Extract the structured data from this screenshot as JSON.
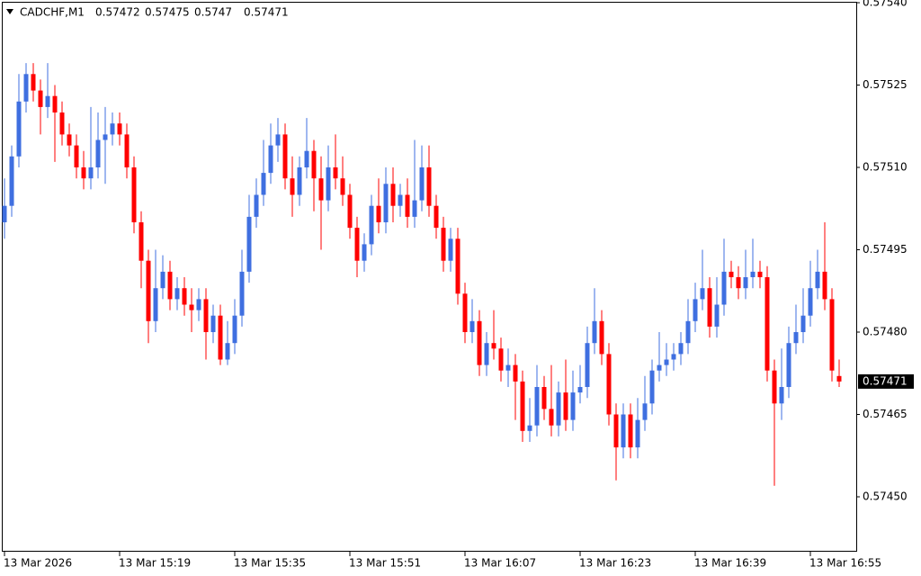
{
  "chart_data": {
    "type": "candlestick",
    "symbol": "CADCHF,M1",
    "ohlc": [
      0.57472,
      0.57475,
      0.5747,
      0.57471
    ],
    "last_price": 0.57471,
    "up_color": "#3f6fe0",
    "down_color": "#ff0000",
    "ylim": [
      0.5744,
      0.5754
    ],
    "yticks": [
      {
        "value": 0.5745,
        "label": "0.57450"
      },
      0.57465,
      {
        "value": 0.5748,
        "label": "0.57480"
      },
      0.57495,
      {
        "value": 0.5751,
        "label": "0.57510"
      },
      0.57525,
      {
        "value": 0.5754,
        "label": "0.57540"
      }
    ],
    "categories": [
      "13 Mar 2026",
      null,
      null,
      null,
      null,
      null,
      null,
      null,
      null,
      null,
      null,
      null,
      null,
      null,
      null,
      null,
      "13 Mar 15:19",
      null,
      null,
      null,
      null,
      null,
      null,
      null,
      null,
      null,
      null,
      null,
      null,
      null,
      null,
      null,
      "13 Mar 15:35",
      null,
      null,
      null,
      null,
      null,
      null,
      null,
      null,
      null,
      null,
      null,
      null,
      null,
      null,
      null,
      "13 Mar 15:51",
      null,
      null,
      null,
      null,
      null,
      null,
      null,
      null,
      null,
      null,
      null,
      null,
      null,
      null,
      null,
      "13 Mar 16:07",
      null,
      null,
      null,
      null,
      null,
      null,
      null,
      null,
      null,
      null,
      null,
      null,
      null,
      null,
      null,
      "13 Mar 16:23",
      null,
      null,
      null,
      null,
      null,
      null,
      null,
      null,
      null,
      null,
      null,
      null,
      null,
      null,
      null,
      "13 Mar 16:39",
      null,
      null,
      null,
      null,
      null,
      null,
      null,
      null,
      null,
      null,
      null,
      null,
      null,
      null,
      null,
      "13 Mar 16:55",
      null,
      null,
      null,
      null
    ],
    "open": [
      0.575,
      0.57503,
      0.57512,
      0.57522,
      0.57527,
      0.57524,
      0.57521,
      0.57523,
      0.5752,
      0.57516,
      0.57514,
      0.5751,
      0.57508,
      0.5751,
      0.57515,
      0.57516,
      0.57518,
      0.57516,
      0.5751,
      0.575,
      0.57493,
      0.57482,
      0.57488,
      0.57491,
      0.57486,
      0.57488,
      0.57485,
      0.57484,
      0.57486,
      0.5748,
      0.57483,
      0.57475,
      0.57478,
      0.57483,
      0.57491,
      0.57501,
      0.57505,
      0.57509,
      0.57514,
      0.57516,
      0.57508,
      0.57505,
      0.5751,
      0.57513,
      0.57508,
      0.57504,
      0.5751,
      0.57508,
      0.57505,
      0.57499,
      0.57493,
      0.57496,
      0.57503,
      0.575,
      0.57507,
      0.57503,
      0.57505,
      0.57501,
      0.57504,
      0.5751,
      0.57503,
      0.57499,
      0.57493,
      0.57497,
      0.57487,
      0.5748,
      0.57482,
      0.57474,
      0.57478,
      0.57477,
      0.57473,
      0.57474,
      0.57471,
      0.57462,
      0.57463,
      0.5747,
      0.57466,
      0.57463,
      0.57469,
      0.57464,
      0.57469,
      0.5747,
      0.57478,
      0.57482,
      0.57476,
      0.57465,
      0.57459,
      0.57465,
      0.57459,
      0.57464,
      0.57467,
      0.57473,
      0.57474,
      0.57475,
      0.57476,
      0.57478,
      0.57482,
      0.57486,
      0.57488,
      0.57481,
      0.57485,
      0.57491,
      0.5749,
      0.57488,
      0.5749,
      0.57491,
      0.5749,
      0.57473,
      0.57467,
      0.5747,
      0.57478,
      0.5748,
      0.57483,
      0.57488,
      0.57491,
      0.57486,
      0.57472
    ],
    "high": [
      0.57508,
      0.57514,
      0.57527,
      0.57529,
      0.57529,
      0.57526,
      0.57529,
      0.57525,
      0.57522,
      0.57518,
      0.57516,
      0.57513,
      0.57521,
      0.5752,
      0.57521,
      0.5752,
      0.5752,
      0.57518,
      0.57512,
      0.57502,
      0.57495,
      0.57495,
      0.57494,
      0.57493,
      0.5749,
      0.5749,
      0.57488,
      0.57488,
      0.57488,
      0.57485,
      0.57485,
      0.57482,
      0.57486,
      0.57495,
      0.57505,
      0.57508,
      0.57515,
      0.57518,
      0.57519,
      0.57518,
      0.57512,
      0.57512,
      0.57519,
      0.57515,
      0.57512,
      0.57514,
      0.57516,
      0.57512,
      0.57507,
      0.57501,
      0.57498,
      0.57505,
      0.57508,
      0.5751,
      0.5751,
      0.57507,
      0.57508,
      0.57515,
      0.57514,
      0.57514,
      0.57505,
      0.57501,
      0.57499,
      0.57499,
      0.57489,
      0.57486,
      0.57484,
      0.5748,
      0.57484,
      0.57479,
      0.57477,
      0.57476,
      0.57473,
      0.57468,
      0.57474,
      0.57472,
      0.57474,
      0.57471,
      0.57475,
      0.57473,
      0.57474,
      0.57481,
      0.57488,
      0.57484,
      0.57478,
      0.57467,
      0.57467,
      0.57467,
      0.57468,
      0.57472,
      0.57475,
      0.5748,
      0.57478,
      0.57478,
      0.5748,
      0.57486,
      0.57489,
      0.57495,
      0.5749,
      0.5749,
      0.57497,
      0.57493,
      0.57492,
      0.57495,
      0.57497,
      0.57493,
      0.57492,
      0.57475,
      0.57477,
      0.57481,
      0.57485,
      0.57488,
      0.57493,
      0.57495,
      0.575,
      0.57488,
      0.57475
    ],
    "low": [
      0.57497,
      0.57501,
      0.5751,
      0.5752,
      0.57522,
      0.57516,
      0.57519,
      0.57511,
      0.57514,
      0.57512,
      0.57508,
      0.57506,
      0.57506,
      0.57508,
      0.57507,
      0.57514,
      0.57514,
      0.57508,
      0.57498,
      0.57488,
      0.57478,
      0.5748,
      0.57486,
      0.57484,
      0.57484,
      0.57483,
      0.5748,
      0.57482,
      0.57475,
      0.57478,
      0.57474,
      0.57474,
      0.57476,
      0.57481,
      0.57489,
      0.57499,
      0.57503,
      0.57507,
      0.57511,
      0.57506,
      0.57501,
      0.57503,
      0.57508,
      0.57502,
      0.57495,
      0.57502,
      0.57506,
      0.57503,
      0.57497,
      0.5749,
      0.57491,
      0.57494,
      0.57498,
      0.57498,
      0.575,
      0.57501,
      0.57499,
      0.57499,
      0.57502,
      0.57501,
      0.57497,
      0.57491,
      0.57491,
      0.57485,
      0.57478,
      0.57478,
      0.57472,
      0.57472,
      0.57475,
      0.57471,
      0.5747,
      0.57464,
      0.5746,
      0.5746,
      0.57461,
      0.57464,
      0.57461,
      0.57461,
      0.57462,
      0.57462,
      0.57467,
      0.57468,
      0.57476,
      0.57474,
      0.57463,
      0.57453,
      0.57457,
      0.57457,
      0.57457,
      0.57462,
      0.57465,
      0.57471,
      0.57472,
      0.57473,
      0.57474,
      0.57476,
      0.5748,
      0.57484,
      0.57479,
      0.57479,
      0.57483,
      0.57488,
      0.57486,
      0.57486,
      0.57488,
      0.57488,
      0.57471,
      0.57452,
      0.57464,
      0.57468,
      0.57476,
      0.57478,
      0.57481,
      0.57486,
      0.57484,
      0.57471,
      0.5747
    ],
    "close": [
      0.57503,
      0.57512,
      0.57522,
      0.57527,
      0.57524,
      0.57521,
      0.57523,
      0.5752,
      0.57516,
      0.57514,
      0.5751,
      0.57508,
      0.5751,
      0.57515,
      0.57516,
      0.57518,
      0.57516,
      0.5751,
      0.575,
      0.57493,
      0.57482,
      0.57488,
      0.57491,
      0.57486,
      0.57488,
      0.57485,
      0.57484,
      0.57486,
      0.5748,
      0.57483,
      0.57475,
      0.57478,
      0.57483,
      0.57491,
      0.57501,
      0.57505,
      0.57509,
      0.57514,
      0.57516,
      0.57508,
      0.57505,
      0.5751,
      0.57513,
      0.57508,
      0.57504,
      0.5751,
      0.57508,
      0.57505,
      0.57499,
      0.57493,
      0.57496,
      0.57503,
      0.575,
      0.57507,
      0.57503,
      0.57505,
      0.57501,
      0.57504,
      0.5751,
      0.57503,
      0.57499,
      0.57493,
      0.57497,
      0.57487,
      0.5748,
      0.57482,
      0.57474,
      0.57478,
      0.57477,
      0.57473,
      0.57474,
      0.57471,
      0.57462,
      0.57463,
      0.5747,
      0.57466,
      0.57463,
      0.57469,
      0.57464,
      0.57469,
      0.5747,
      0.57478,
      0.57482,
      0.57476,
      0.57465,
      0.57459,
      0.57465,
      0.57459,
      0.57464,
      0.57467,
      0.57473,
      0.57474,
      0.57475,
      0.57476,
      0.57478,
      0.57482,
      0.57486,
      0.57488,
      0.57481,
      0.57485,
      0.57491,
      0.5749,
      0.57488,
      0.5749,
      0.57491,
      0.5749,
      0.57473,
      0.57467,
      0.5747,
      0.57478,
      0.5748,
      0.57483,
      0.57488,
      0.57491,
      0.57486,
      0.57473,
      0.57471
    ]
  }
}
